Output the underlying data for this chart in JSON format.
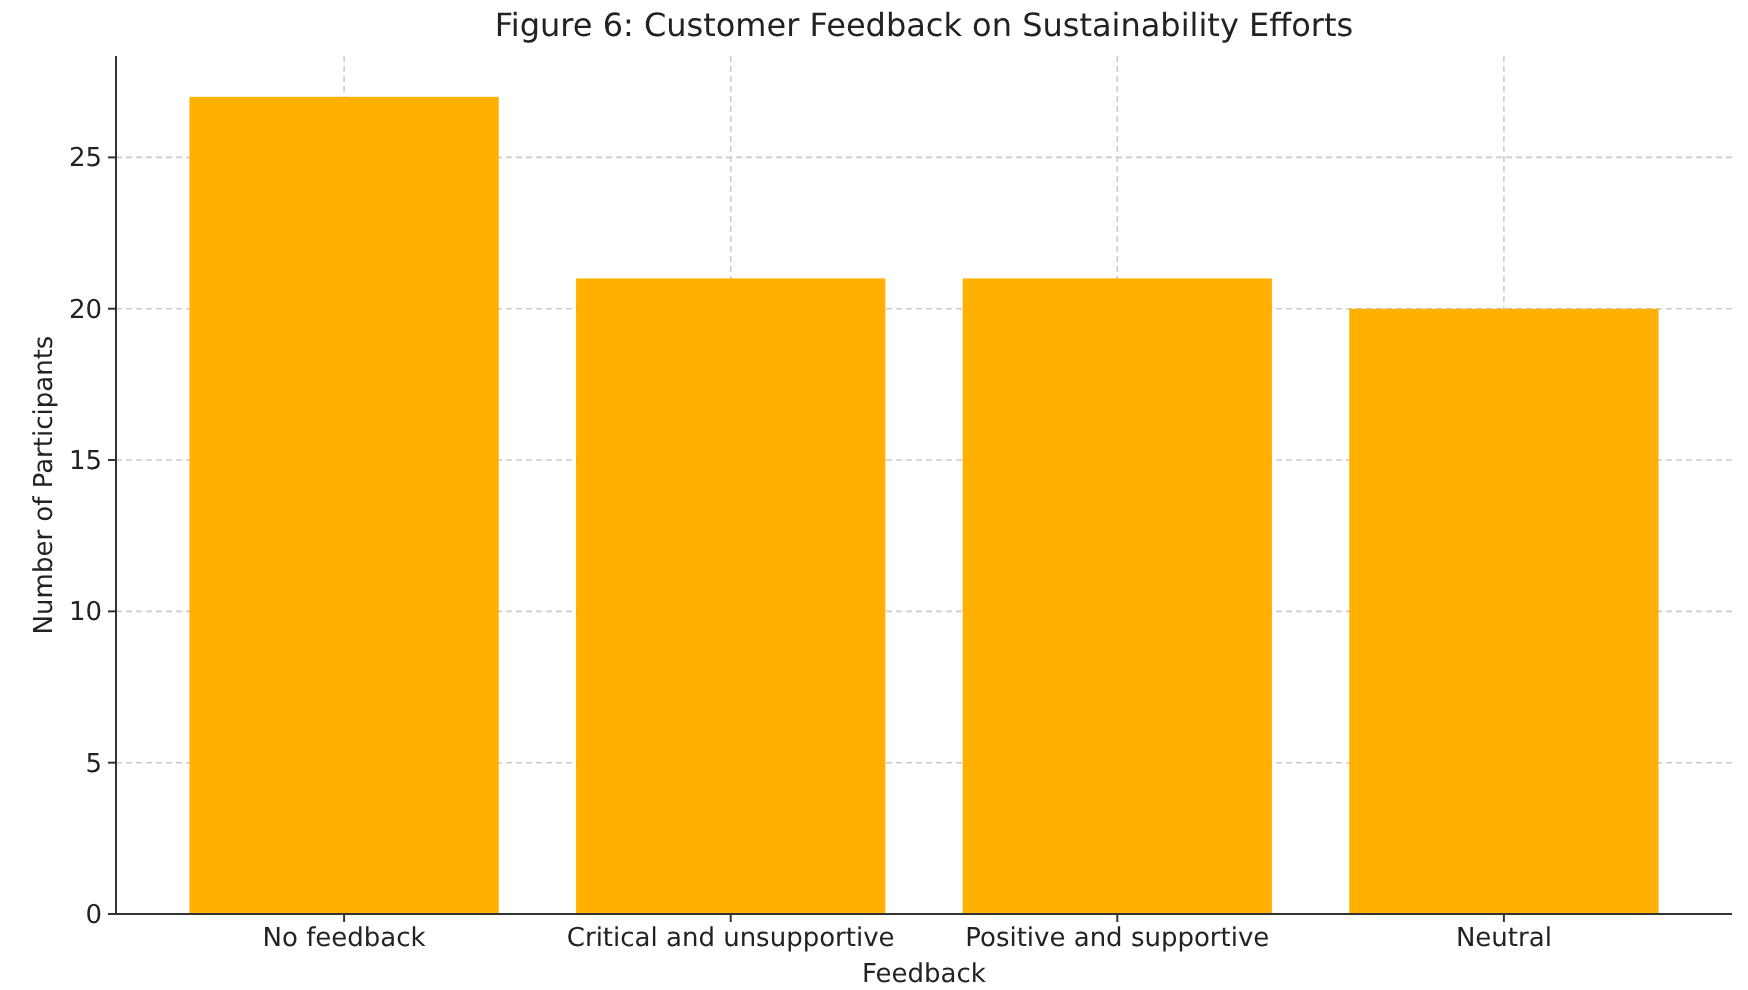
{
  "chart_data": {
    "type": "bar",
    "title": "Figure 6: Customer Feedback on Sustainability Efforts",
    "xlabel": "Feedback",
    "ylabel": "Number of Participants",
    "categories": [
      "No feedback",
      "Critical and unsupportive",
      "Positive and supportive",
      "Neutral"
    ],
    "values": [
      27,
      21,
      21,
      20
    ],
    "color": "#ffb000",
    "ylim": [
      0,
      28.35
    ],
    "yticks": [
      0,
      5,
      10,
      15,
      20,
      25
    ],
    "grid": true
  }
}
